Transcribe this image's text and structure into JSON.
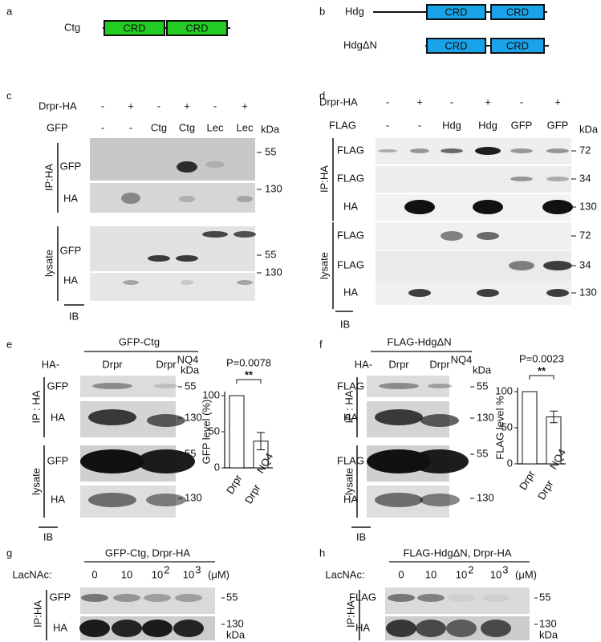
{
  "panels": {
    "a": {
      "letter": "a",
      "label": "Ctg",
      "domains": [
        "CRD",
        "CRD"
      ]
    },
    "b": {
      "letter": "b",
      "hdg": {
        "label": "Hdg",
        "domains": [
          "CRD",
          "CRD"
        ]
      },
      "hdgdn": {
        "label": "HdgΔN",
        "domains": [
          "CRD",
          "CRD"
        ]
      }
    },
    "c": {
      "letter": "c",
      "row_labels": [
        "Drpr-HA",
        "GFP"
      ],
      "drpr": [
        "-",
        "+",
        "-",
        "+",
        "-",
        "+"
      ],
      "gfp": [
        "-",
        "-",
        "Ctg",
        "Ctg",
        "Lec",
        "Lec"
      ],
      "unit": "kDa",
      "groups": [
        "IP:HA",
        "lysate"
      ],
      "blots": [
        "GFP",
        "HA",
        "GFP",
        "HA"
      ],
      "markers": [
        "55",
        "130",
        "55",
        "130"
      ],
      "ib": "IB"
    },
    "d": {
      "letter": "d",
      "row_labels": [
        "Drpr-HA",
        "FLAG"
      ],
      "drpr": [
        "-",
        "+",
        "-",
        "+",
        "-",
        "+"
      ],
      "flag": [
        "-",
        "-",
        "Hdg",
        "Hdg",
        "GFP",
        "GFP"
      ],
      "unit": "kDa",
      "groups": [
        "IP:HA",
        "lysate"
      ],
      "blots": [
        "FLAG",
        "FLAG",
        "HA",
        "FLAG",
        "FLAG",
        "HA"
      ],
      "markers": [
        "72",
        "34",
        "130",
        "72",
        "34",
        "130"
      ],
      "ib": "IB"
    },
    "e": {
      "letter": "e",
      "construct": "GFP-Ctg",
      "row_label": "HA-",
      "lanes": [
        "Drpr",
        "Drpr"
      ],
      "lane_superscripts": [
        null,
        "NQ4"
      ],
      "unit": "kDa",
      "groups": [
        "IP : HA",
        "lysate"
      ],
      "blots": [
        "GFP",
        "HA",
        "GFP",
        "HA"
      ],
      "markers": [
        "55",
        "130",
        "55",
        "130"
      ],
      "ib": "IB"
    },
    "f": {
      "letter": "f",
      "construct": "FLAG-HdgΔN",
      "row_label": "HA-",
      "lanes": [
        "Drpr",
        "Drpr"
      ],
      "lane_superscripts": [
        null,
        "NQ4"
      ],
      "unit": "kDa",
      "groups": [
        "IP : HA",
        "lysate"
      ],
      "blots": [
        "FLAG",
        "HA",
        "FLAG",
        "HA"
      ],
      "markers": [
        "55",
        "130",
        "55",
        "130"
      ],
      "ib": "IB"
    },
    "g": {
      "letter": "g",
      "construct": "GFP-Ctg, Drpr-HA",
      "row_label": "LacNAc:",
      "doses": [
        "0",
        "10",
        "10",
        "10"
      ],
      "dose_superscripts": [
        null,
        null,
        "2",
        "3"
      ],
      "dose_unit": "(μM)",
      "group": "IP:HA",
      "blots": [
        "GFP",
        "HA"
      ],
      "markers": [
        "55",
        "130"
      ],
      "unit": "kDa"
    },
    "h": {
      "letter": "h",
      "construct": "FLAG-HdgΔN, Drpr-HA",
      "row_label": "LacNAc:",
      "doses": [
        "0",
        "10",
        "10",
        "10"
      ],
      "dose_superscripts": [
        null,
        null,
        "2",
        "3"
      ],
      "dose_unit": "(μM)",
      "group": "IP:HA",
      "blots": [
        "FLAG",
        "HA"
      ],
      "markers": [
        "55",
        "130"
      ],
      "unit": "kDa"
    }
  },
  "chart_data": [
    {
      "type": "bar",
      "categories": [
        "Drpr",
        "Drpr"
      ],
      "category_superscripts": [
        null,
        "NQ4"
      ],
      "values": [
        100,
        37
      ],
      "errors": [
        null,
        12
      ],
      "ylabel": "GFP level (%)",
      "ylim": [
        0,
        100
      ],
      "yticks": [
        0,
        50,
        100
      ],
      "annotation": "P=0.0078",
      "significance": "**",
      "color": "#ffffff"
    },
    {
      "type": "bar",
      "categories": [
        "Drpr",
        "Drpr"
      ],
      "category_superscripts": [
        null,
        "NQ4"
      ],
      "values": [
        100,
        65
      ],
      "errors": [
        null,
        8
      ],
      "ylabel": "FLAG level %",
      "ylim": [
        0,
        100
      ],
      "yticks": [
        0,
        50,
        100
      ],
      "annotation": "P=0.0023",
      "significance": "**",
      "color": "#ffffff"
    }
  ]
}
